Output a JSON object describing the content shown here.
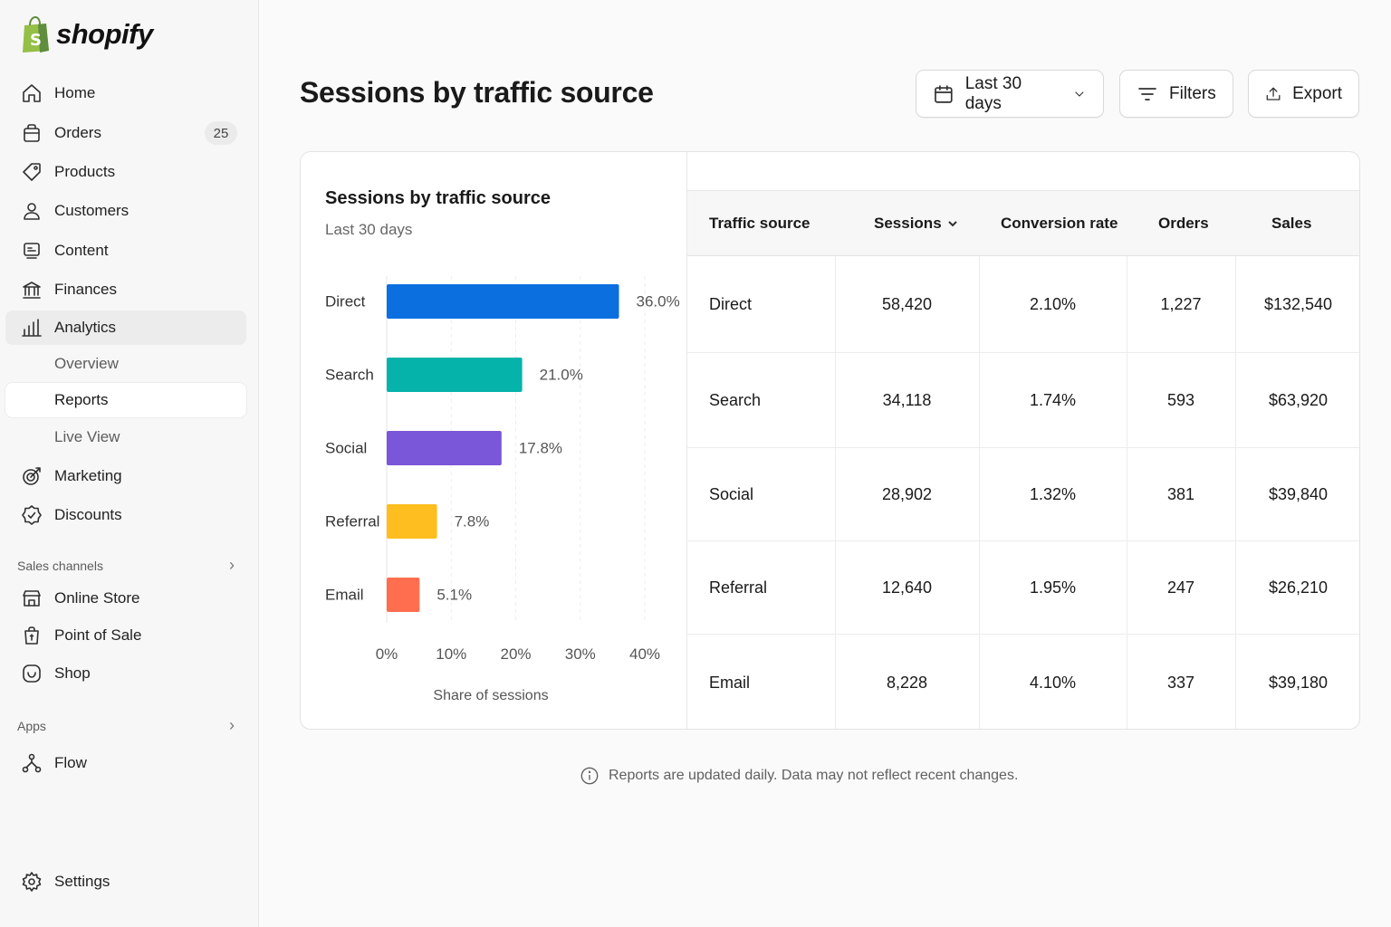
{
  "app": {
    "brand": "shopify"
  },
  "sidebar": {
    "items": [
      {
        "label": "Home",
        "icon": "home-icon"
      },
      {
        "label": "Orders",
        "icon": "orders-icon",
        "badge": "25"
      },
      {
        "label": "Products",
        "icon": "tag-icon"
      },
      {
        "label": "Customers",
        "icon": "person-icon"
      },
      {
        "label": "Content",
        "icon": "content-icon"
      },
      {
        "label": "Finances",
        "icon": "bank-icon"
      },
      {
        "label": "Analytics",
        "icon": "bar-chart-icon",
        "active": true
      }
    ],
    "analytics_sub": [
      {
        "label": "Overview"
      },
      {
        "label": "Reports",
        "selected": true
      },
      {
        "label": "Live View"
      }
    ],
    "more_items": [
      {
        "label": "Marketing",
        "icon": "target-icon"
      },
      {
        "label": "Discounts",
        "icon": "discount-icon"
      }
    ],
    "sales_channels_label": "Sales channels",
    "sales_channels": [
      {
        "label": "Online Store",
        "icon": "store-icon"
      },
      {
        "label": "Point of Sale",
        "icon": "pos-icon"
      },
      {
        "label": "Shop",
        "icon": "shop-icon"
      }
    ],
    "apps_label": "Apps",
    "apps": [
      {
        "label": "Flow",
        "icon": "flow-icon"
      }
    ],
    "settings_label": "Settings"
  },
  "header": {
    "title": "Sessions by traffic source",
    "date_range": "Last 30 days",
    "filters_label": "Filters",
    "export_label": "Export"
  },
  "chart_data": {
    "type": "bar",
    "orientation": "horizontal",
    "title": "Sessions by traffic source",
    "subtitle": "Last 30 days",
    "categories": [
      "Direct",
      "Search",
      "Social",
      "Referral",
      "Email"
    ],
    "values": [
      36.0,
      21.0,
      17.8,
      7.8,
      5.1
    ],
    "value_labels": [
      "36.0%",
      "21.0%",
      "17.8%",
      "7.8%",
      "5.1%"
    ],
    "colors": [
      "#0b6fe0",
      "#05b3ab",
      "#7a56d8",
      "#ffbe1f",
      "#ff6e4f"
    ],
    "xlabel": "Share of sessions",
    "xlim": [
      0,
      40
    ],
    "xticks": [
      "0%",
      "10%",
      "20%",
      "30%",
      "40%"
    ],
    "grid": true
  },
  "table": {
    "headers": [
      "Traffic source",
      "Sessions",
      "Conversion rate",
      "Orders",
      "Sales"
    ],
    "sort_column": "Sessions",
    "rows": [
      [
        "Direct",
        "58,420",
        "2.10%",
        "1,227",
        "$132,540"
      ],
      [
        "Search",
        "34,118",
        "1.74%",
        "593",
        "$63,920"
      ],
      [
        "Social",
        "28,902",
        "1.32%",
        "381",
        "$39,840"
      ],
      [
        "Referral",
        "12,640",
        "1.95%",
        "247",
        "$26,210"
      ],
      [
        "Email",
        "8,228",
        "4.10%",
        "337",
        "$39,180"
      ]
    ]
  },
  "footnote": "Reports are updated daily. Data may not reflect recent changes."
}
